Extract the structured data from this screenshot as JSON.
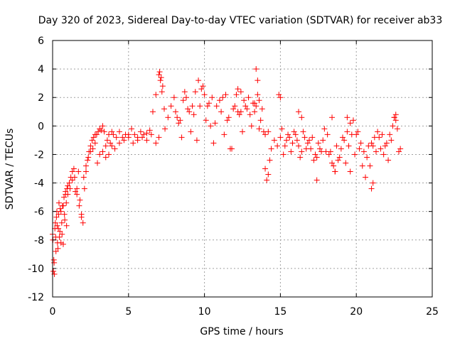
{
  "chart_data": {
    "type": "scatter",
    "title": "Day 320 of 2023, Sidereal Day-to-day VTEC variation (SDTVAR) for receiver ab33",
    "xlabel": "GPS time / hours",
    "ylabel": "SDTVAR / TECUs",
    "xlim": [
      0,
      25
    ],
    "ylim": [
      -12,
      6
    ],
    "xticks": [
      0,
      5,
      10,
      15,
      20,
      25
    ],
    "yticks": [
      -12,
      -10,
      -8,
      -6,
      -4,
      -2,
      0,
      2,
      4,
      6
    ],
    "xtick_labels": [
      "0",
      "5",
      "10",
      "15",
      "20",
      "25"
    ],
    "ytick_labels": [
      "-12",
      "-10",
      "-8",
      "-6",
      "-4",
      "-2",
      "0",
      "2",
      "4",
      "6"
    ],
    "grid": true,
    "marker": "+",
    "color": "#ff0000",
    "series": [
      {
        "name": "SDTVAR",
        "x": [
          0.0,
          0.05,
          0.1,
          0.15,
          0.2,
          0.25,
          0.3,
          0.35,
          0.4,
          0.45,
          0.5,
          0.55,
          0.6,
          0.65,
          0.7,
          0.75,
          0.8,
          0.85,
          0.9,
          0.95,
          1.0,
          1.1,
          1.2,
          1.3,
          1.4,
          1.5,
          1.6,
          1.7,
          1.8,
          1.9,
          2.0,
          2.1,
          2.2,
          2.3,
          2.4,
          2.5,
          2.6,
          2.7,
          2.8,
          2.9,
          3.0,
          3.1,
          3.2,
          3.3,
          3.4,
          3.5,
          3.6,
          3.7,
          3.8,
          3.9,
          4.0,
          4.2,
          4.4,
          4.6,
          4.8,
          5.0,
          5.2,
          5.4,
          5.6,
          5.8,
          6.0,
          6.2,
          6.4,
          6.6,
          6.8,
          7.0,
          7.1,
          7.2,
          7.4,
          7.6,
          7.8,
          8.0,
          8.2,
          8.4,
          8.6,
          8.8,
          9.0,
          9.2,
          9.4,
          9.6,
          9.8,
          10.0,
          10.2,
          10.4,
          10.6,
          10.8,
          11.0,
          11.2,
          11.4,
          11.6,
          11.8,
          12.0,
          12.2,
          12.4,
          12.6,
          12.8,
          13.0,
          13.2,
          13.4,
          13.6,
          13.8,
          14.0,
          14.2,
          14.4,
          14.6,
          14.8,
          15.0,
          15.2,
          15.4,
          15.6,
          15.8,
          16.0,
          16.2,
          16.4,
          16.6,
          16.8,
          17.0,
          17.2,
          17.4,
          17.6,
          17.8,
          18.0,
          18.2,
          18.4,
          18.6,
          18.8,
          19.0,
          19.2,
          19.4,
          19.6,
          19.8,
          20.0,
          20.2,
          20.4,
          20.6,
          20.8,
          21.0,
          21.2,
          21.4,
          21.6,
          21.8,
          22.0,
          22.2,
          22.4,
          22.6,
          22.8,
          0.02,
          0.08,
          0.12,
          0.18,
          0.22,
          0.28,
          0.32,
          0.38,
          0.42,
          0.48,
          0.55,
          0.62,
          0.7,
          0.78,
          0.85,
          0.92,
          1.0,
          1.15,
          1.3,
          1.45,
          1.6,
          1.75,
          1.9,
          2.05,
          2.2,
          2.35,
          2.5,
          2.65,
          2.8,
          2.95,
          3.1,
          3.3,
          3.5,
          3.7,
          3.9,
          4.1,
          4.4,
          4.7,
          5.0,
          5.3,
          5.6,
          5.9,
          6.2,
          6.5,
          6.8,
          7.0,
          8.1,
          8.3,
          8.5,
          8.7,
          8.9,
          9.1,
          9.3,
          9.5,
          9.7,
          9.9,
          10.1,
          10.3,
          10.5,
          10.7,
          11.1,
          11.3,
          11.5,
          11.7,
          11.9,
          12.1,
          12.3,
          12.5,
          12.7,
          12.9,
          13.1,
          13.3,
          13.5,
          13.7,
          13.9,
          15.1,
          15.3,
          15.5,
          15.7,
          15.9,
          16.1,
          16.3,
          16.5,
          16.7,
          16.9,
          17.1,
          17.3,
          17.5,
          17.7,
          17.9,
          18.1,
          18.3,
          18.5,
          18.7,
          18.9,
          19.1,
          19.3,
          19.5,
          19.7,
          19.9,
          20.1,
          20.3,
          20.5,
          20.7,
          20.9,
          21.1,
          21.3,
          21.5,
          21.7,
          21.9,
          22.1,
          22.3,
          22.5,
          22.7,
          22.9,
          7.05,
          7.15,
          7.25,
          7.35,
          12.2,
          12.4,
          13.3,
          13.4,
          13.5,
          13.6,
          14.0,
          14.1,
          14.2,
          14.3,
          14.9,
          15.0,
          16.2,
          16.4,
          17.4,
          18.4,
          18.6,
          19.4,
          19.6,
          21.0,
          21.1,
          22.5,
          22.6
        ],
        "y": [
          -7.6,
          -10.2,
          -9.6,
          -7.2,
          -7.8,
          -6.4,
          -7.0,
          -8.6,
          -6.2,
          -7.8,
          -5.8,
          -8.2,
          -6.8,
          -5.6,
          -8.3,
          -5.0,
          -6.6,
          -4.6,
          -5.4,
          -4.4,
          -4.2,
          -4.0,
          -3.6,
          -3.2,
          -3.0,
          -4.6,
          -4.4,
          -3.2,
          -5.2,
          -6.2,
          -6.8,
          -4.4,
          -3.2,
          -2.4,
          -1.8,
          -1.4,
          -1.0,
          -0.8,
          -0.6,
          -0.6,
          -0.4,
          -0.2,
          -0.3,
          0.0,
          -0.4,
          -1.4,
          -1.0,
          -0.6,
          -1.2,
          -0.4,
          -0.6,
          -0.8,
          -0.4,
          -0.8,
          -0.6,
          -0.6,
          -0.2,
          -0.6,
          -0.8,
          -0.4,
          -0.6,
          -0.5,
          -0.3,
          1.0,
          2.2,
          3.6,
          3.2,
          2.4,
          -0.2,
          0.6,
          1.4,
          2.0,
          0.6,
          0.4,
          1.8,
          2.0,
          1.0,
          1.4,
          2.4,
          3.2,
          2.6,
          2.2,
          1.4,
          0.0,
          -1.2,
          1.4,
          1.8,
          2.0,
          2.2,
          0.6,
          -1.6,
          1.4,
          2.6,
          1.0,
          1.8,
          1.2,
          0.8,
          1.6,
          1.4,
          -0.2,
          1.2,
          -0.6,
          -0.4,
          -1.6,
          -1.0,
          -1.4,
          -0.8,
          -2.0,
          -1.0,
          -0.8,
          -1.2,
          -0.6,
          -1.4,
          -1.8,
          -0.8,
          -1.2,
          -1.6,
          -2.4,
          -2.2,
          -1.6,
          -1.0,
          -1.8,
          -2.0,
          -2.6,
          -3.2,
          -2.4,
          -1.6,
          -1.0,
          -0.4,
          0.2,
          0.4,
          -0.6,
          -1.6,
          -2.8,
          -3.6,
          -1.4,
          -1.2,
          -0.8,
          -0.4,
          -1.6,
          -2.0,
          -1.2,
          -0.6,
          0.0,
          0.4,
          -1.8,
          -8.0,
          -9.4,
          -10.4,
          -6.8,
          -8.8,
          -6.0,
          -8.2,
          -7.2,
          -5.4,
          -7.4,
          -6.0,
          -7.6,
          -5.6,
          -6.2,
          -4.8,
          -7.0,
          -4.8,
          -4.4,
          -3.8,
          -3.6,
          -4.8,
          -5.6,
          -6.4,
          -3.6,
          -2.8,
          -2.2,
          -1.8,
          -1.6,
          -1.2,
          -2.6,
          -2.0,
          -1.8,
          -2.2,
          -2.0,
          -1.4,
          -1.6,
          -1.2,
          -1.0,
          -0.8,
          -1.2,
          -1.0,
          -0.8,
          -1.0,
          -0.6,
          -1.2,
          -0.8,
          1.0,
          0.2,
          -0.8,
          2.4,
          1.2,
          -0.4,
          0.8,
          -1.0,
          1.4,
          2.8,
          0.4,
          1.6,
          2.0,
          0.2,
          1.0,
          -0.6,
          0.4,
          -1.6,
          1.2,
          2.2,
          0.8,
          -0.4,
          1.4,
          2.0,
          0.0,
          1.0,
          3.2,
          0.4,
          -0.4,
          -0.2,
          -1.4,
          -0.6,
          -1.8,
          -0.4,
          -1.0,
          -2.2,
          -0.4,
          -1.6,
          -1.0,
          -0.8,
          -2.0,
          -1.2,
          -1.8,
          -0.2,
          -0.6,
          -1.8,
          -2.8,
          -1.4,
          -2.2,
          -0.8,
          -2.6,
          -1.4,
          -0.6,
          -2.0,
          -0.4,
          -1.2,
          -1.8,
          -2.2,
          -2.8,
          -1.4,
          -1.8,
          -0.8,
          -0.6,
          -1.4,
          -2.4,
          -1.0,
          0.6,
          -0.2,
          -1.6,
          3.8,
          3.4,
          2.8,
          1.2,
          1.0,
          2.4,
          1.6,
          4.0,
          2.2,
          1.8,
          -3.0,
          -3.8,
          -3.4,
          -2.4,
          2.2,
          2.0,
          1.0,
          0.6,
          -3.8,
          0.6,
          -3.2,
          0.6,
          -3.2,
          -4.4,
          -4.0,
          0.6,
          0.8
        ]
      }
    ]
  }
}
